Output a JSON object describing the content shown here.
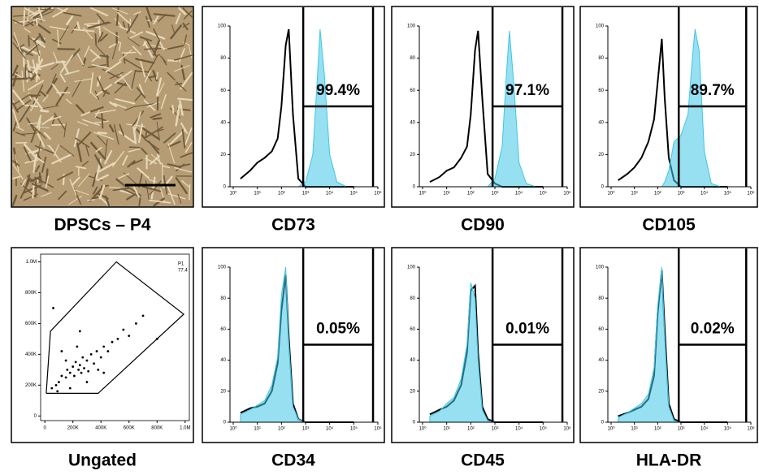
{
  "chart_data": [
    {
      "type": "image",
      "title": "DPSCs – P4"
    },
    {
      "type": "histogram",
      "title": "CD73",
      "log_x": true,
      "xlim": [
        1,
        1000000
      ],
      "ylim": [
        0,
        100
      ],
      "xticks": [
        {
          "value": 1,
          "label": "10⁰"
        },
        {
          "value": 10,
          "label": "10¹"
        },
        {
          "value": 100,
          "label": "10²"
        },
        {
          "value": 1000,
          "label": "10³"
        },
        {
          "value": 10000,
          "label": "10⁴"
        },
        {
          "value": 100000,
          "label": "10⁵"
        },
        {
          "value": 1000000,
          "label": "10⁶"
        }
      ],
      "yticks": [
        0,
        20,
        40,
        60,
        80,
        100
      ],
      "gate_x": [
        800,
        630000
      ],
      "gate_y": 50,
      "gate_label": "99.4%",
      "x": [
        2,
        5,
        10,
        20,
        40,
        70,
        100,
        150,
        200,
        300,
        500,
        1000,
        2000,
        3000,
        4000,
        6000,
        10000,
        20000,
        50000,
        100000
      ],
      "series": [
        {
          "color": "#000000",
          "fill": false,
          "values": [
            5,
            10,
            15,
            18,
            22,
            30,
            50,
            88,
            98,
            45,
            5,
            0,
            0,
            0,
            0,
            0,
            0,
            0,
            0,
            0
          ]
        },
        {
          "color": "#3fc6e6",
          "fill": true,
          "values": [
            0,
            0,
            0,
            0,
            0,
            0,
            0,
            0,
            0,
            0,
            0,
            3,
            20,
            65,
            98,
            70,
            20,
            3,
            0,
            0
          ]
        }
      ]
    },
    {
      "type": "histogram",
      "title": "CD90",
      "log_x": true,
      "xlim": [
        1,
        1000000
      ],
      "ylim": [
        0,
        100
      ],
      "xticks": [
        {
          "value": 1,
          "label": "10⁰"
        },
        {
          "value": 10,
          "label": "10¹"
        },
        {
          "value": 100,
          "label": "10²"
        },
        {
          "value": 1000,
          "label": "10³"
        },
        {
          "value": 10000,
          "label": "10⁴"
        },
        {
          "value": 100000,
          "label": "10⁵"
        },
        {
          "value": 1000000,
          "label": "10⁶"
        }
      ],
      "yticks": [
        0,
        20,
        40,
        60,
        80,
        100
      ],
      "gate_x": [
        800,
        630000
      ],
      "gate_y": 50,
      "gate_label": "97.1%",
      "x": [
        2,
        5,
        10,
        20,
        40,
        70,
        100,
        150,
        200,
        300,
        500,
        1000,
        2000,
        3000,
        4000,
        6000,
        10000,
        20000,
        50000,
        100000
      ],
      "series": [
        {
          "color": "#000000",
          "fill": false,
          "values": [
            3,
            6,
            10,
            12,
            18,
            25,
            45,
            85,
            97,
            55,
            8,
            2,
            0,
            0,
            0,
            0,
            0,
            0,
            0,
            0
          ]
        },
        {
          "color": "#3fc6e6",
          "fill": true,
          "values": [
            0,
            0,
            0,
            0,
            0,
            0,
            0,
            0,
            0,
            0,
            0,
            5,
            25,
            70,
            97,
            65,
            15,
            2,
            0,
            0
          ]
        }
      ]
    },
    {
      "type": "histogram",
      "title": "CD105",
      "log_x": true,
      "xlim": [
        1,
        1000000
      ],
      "ylim": [
        0,
        100
      ],
      "xticks": [
        {
          "value": 1,
          "label": "10⁰"
        },
        {
          "value": 10,
          "label": "10¹"
        },
        {
          "value": 100,
          "label": "10²"
        },
        {
          "value": 1000,
          "label": "10³"
        },
        {
          "value": 10000,
          "label": "10⁴"
        },
        {
          "value": 100000,
          "label": "10⁵"
        },
        {
          "value": 1000000,
          "label": "10⁶"
        }
      ],
      "yticks": [
        0,
        20,
        40,
        60,
        80,
        100
      ],
      "gate_x": [
        800,
        630000
      ],
      "gate_y": 50,
      "gate_label": "89.7%",
      "x": [
        2,
        5,
        10,
        20,
        40,
        70,
        100,
        150,
        200,
        300,
        500,
        1000,
        2000,
        3000,
        4000,
        6000,
        10000,
        20000,
        50000,
        100000
      ],
      "series": [
        {
          "color": "#000000",
          "fill": false,
          "values": [
            4,
            8,
            12,
            18,
            28,
            42,
            65,
            92,
            55,
            18,
            4,
            0,
            0,
            0,
            0,
            0,
            0,
            0,
            0,
            0
          ]
        },
        {
          "color": "#3fc6e6",
          "fill": true,
          "values": [
            0,
            0,
            0,
            0,
            0,
            0,
            0,
            0,
            3,
            10,
            28,
            32,
            45,
            78,
            98,
            85,
            22,
            2,
            0,
            0
          ]
        }
      ]
    },
    {
      "type": "scatter",
      "title": "Ungated",
      "xlim": [
        -30000,
        1030000
      ],
      "ylim": [
        -30000,
        1050000
      ],
      "xticks": [
        0,
        {
          "value": 200000,
          "label": "200K"
        },
        {
          "value": 400000,
          "label": "400K"
        },
        {
          "value": 600000,
          "label": "600K"
        },
        {
          "value": 800000,
          "label": "800K"
        },
        {
          "value": 1000000,
          "label": "1.0M"
        }
      ],
      "yticks": [
        0,
        {
          "value": 200000,
          "label": "200K"
        },
        {
          "value": 400000,
          "label": "400K"
        },
        {
          "value": 600000,
          "label": "600K"
        },
        {
          "value": 800000,
          "label": "800K"
        },
        {
          "value": 1000000,
          "label": "1.0M"
        }
      ],
      "gate_name": "P1",
      "gate_percent": 77.4,
      "gate_x": [
        10000,
        40000,
        510000,
        990000,
        380000,
        10000
      ],
      "gate_y": [
        147000,
        550000,
        1000000,
        660000,
        147000,
        147000
      ],
      "color": "#000000",
      "x": [
        50000,
        80000,
        100000,
        120000,
        150000,
        160000,
        180000,
        200000,
        210000,
        220000,
        240000,
        250000,
        260000,
        270000,
        280000,
        300000,
        310000,
        330000,
        350000,
        370000,
        400000,
        420000,
        450000,
        480000,
        520000,
        560000,
        600000,
        650000,
        700000,
        120000,
        180000,
        230000,
        300000,
        380000,
        150000,
        90000,
        250000,
        420000,
        60000,
        800000
      ],
      "values": [
        180000,
        200000,
        220000,
        260000,
        250000,
        300000,
        280000,
        320000,
        260000,
        350000,
        300000,
        330000,
        280000,
        380000,
        310000,
        360000,
        290000,
        400000,
        340000,
        420000,
        380000,
        450000,
        420000,
        480000,
        500000,
        560000,
        520000,
        600000,
        650000,
        420000,
        180000,
        450000,
        220000,
        300000,
        360000,
        160000,
        550000,
        280000,
        700000,
        500000
      ]
    },
    {
      "type": "histogram",
      "title": "CD34",
      "log_x": true,
      "xlim": [
        1,
        1000000
      ],
      "ylim": [
        0,
        100
      ],
      "xticks": [
        {
          "value": 1,
          "label": "10⁰"
        },
        {
          "value": 10,
          "label": "10¹"
        },
        {
          "value": 100,
          "label": "10²"
        },
        {
          "value": 1000,
          "label": "10³"
        },
        {
          "value": 10000,
          "label": "10⁴"
        },
        {
          "value": 100000,
          "label": "10⁵"
        },
        {
          "value": 1000000,
          "label": "10⁶"
        }
      ],
      "yticks": [
        0,
        20,
        40,
        60,
        80,
        100
      ],
      "gate_x": [
        800,
        630000
      ],
      "gate_y": 50,
      "gate_label": "0.05%",
      "x": [
        2,
        5,
        10,
        20,
        40,
        70,
        100,
        150,
        200,
        300,
        500,
        1000,
        2000,
        3000,
        4000,
        6000,
        10000,
        20000,
        50000,
        100000
      ],
      "series": [
        {
          "color": "#000000",
          "fill": false,
          "values": [
            6,
            9,
            10,
            12,
            20,
            38,
            72,
            95,
            55,
            12,
            2,
            0,
            0,
            0,
            0,
            0,
            0,
            0,
            0,
            0
          ]
        },
        {
          "color": "#3fc6e6",
          "fill": true,
          "values": [
            5,
            8,
            11,
            14,
            24,
            42,
            82,
            100,
            52,
            10,
            2,
            0,
            0,
            0,
            0,
            0,
            0,
            0,
            0,
            0
          ]
        }
      ]
    },
    {
      "type": "histogram",
      "title": "CD45",
      "log_x": true,
      "xlim": [
        1,
        1000000
      ],
      "ylim": [
        0,
        100
      ],
      "xticks": [
        {
          "value": 1,
          "label": "10⁰"
        },
        {
          "value": 10,
          "label": "10¹"
        },
        {
          "value": 100,
          "label": "10²"
        },
        {
          "value": 1000,
          "label": "10³"
        },
        {
          "value": 10000,
          "label": "10⁴"
        },
        {
          "value": 100000,
          "label": "10⁵"
        },
        {
          "value": 1000000,
          "label": "10⁶"
        }
      ],
      "yticks": [
        0,
        20,
        40,
        60,
        80,
        100
      ],
      "gate_x": [
        800,
        630000
      ],
      "gate_y": 50,
      "gate_label": "0.01%",
      "x": [
        2,
        5,
        10,
        20,
        40,
        70,
        100,
        150,
        200,
        300,
        500,
        1000,
        2000,
        3000,
        4000,
        6000,
        10000,
        20000,
        50000,
        100000
      ],
      "series": [
        {
          "color": "#000000",
          "fill": false,
          "values": [
            5,
            8,
            10,
            14,
            24,
            45,
            85,
            88,
            45,
            10,
            2,
            0,
            0,
            0,
            0,
            0,
            0,
            0,
            0,
            0
          ]
        },
        {
          "color": "#3fc6e6",
          "fill": true,
          "values": [
            4,
            7,
            12,
            16,
            28,
            50,
            90,
            80,
            40,
            8,
            1,
            0,
            0,
            0,
            0,
            0,
            0,
            0,
            0,
            0
          ]
        }
      ]
    },
    {
      "type": "histogram",
      "title": "HLA-DR",
      "log_x": true,
      "xlim": [
        1,
        1000000
      ],
      "ylim": [
        0,
        100
      ],
      "xticks": [
        {
          "value": 1,
          "label": "10⁰"
        },
        {
          "value": 10,
          "label": "10¹"
        },
        {
          "value": 100,
          "label": "10²"
        },
        {
          "value": 1000,
          "label": "10³"
        },
        {
          "value": 10000,
          "label": "10⁴"
        },
        {
          "value": 100000,
          "label": "10⁵"
        },
        {
          "value": 1000000,
          "label": "10⁶"
        }
      ],
      "yticks": [
        0,
        20,
        40,
        60,
        80,
        100
      ],
      "gate_x": [
        800,
        630000
      ],
      "gate_y": 50,
      "gate_label": "0.02%",
      "x": [
        2,
        5,
        10,
        20,
        40,
        70,
        100,
        150,
        200,
        300,
        500,
        1000,
        2000,
        3000,
        4000,
        6000,
        10000,
        20000,
        50000,
        100000
      ],
      "series": [
        {
          "color": "#000000",
          "fill": false,
          "values": [
            4,
            6,
            8,
            10,
            15,
            30,
            70,
            98,
            60,
            12,
            2,
            0,
            0,
            0,
            0,
            0,
            0,
            0,
            0,
            0
          ]
        },
        {
          "color": "#3fc6e6",
          "fill": true,
          "values": [
            3,
            6,
            9,
            12,
            18,
            35,
            75,
            100,
            55,
            10,
            1,
            0,
            0,
            0,
            0,
            0,
            0,
            0,
            0,
            0
          ]
        }
      ]
    }
  ]
}
